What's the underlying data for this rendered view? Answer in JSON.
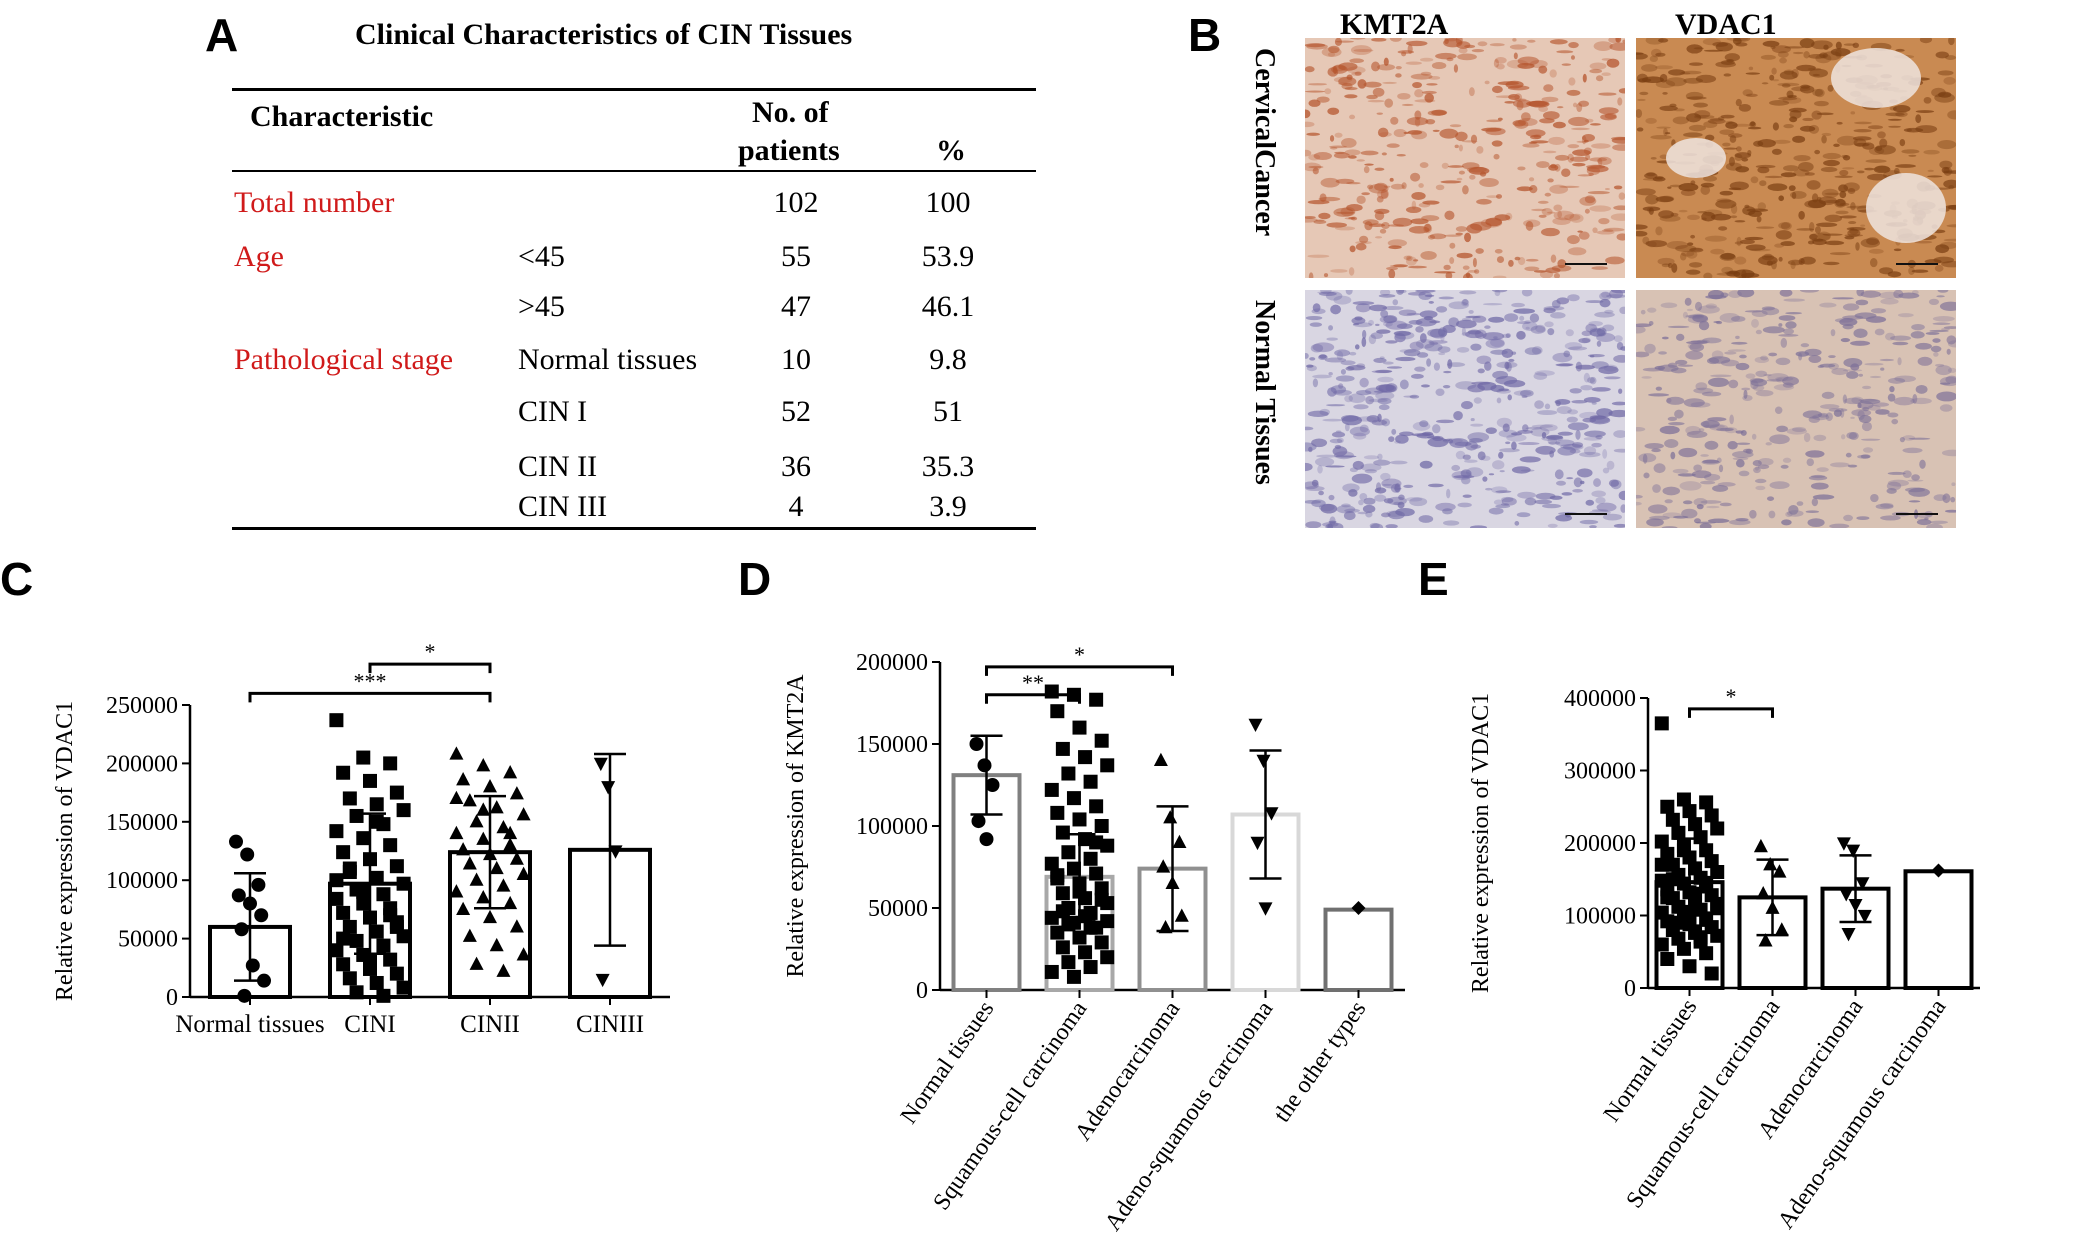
{
  "panel_labels": {
    "a": "A",
    "b": "B",
    "c": "C",
    "d": "D",
    "e": "E"
  },
  "table": {
    "title": "Clinical Characteristics of  CIN Tissues",
    "headers": {
      "characteristic": "Characteristic",
      "no_line1": "No. of",
      "no_line2": "patients",
      "pct": "%"
    },
    "rows": [
      {
        "category": "Total number",
        "sub": "",
        "n": "102",
        "pct": "100"
      },
      {
        "category": "Age",
        "sub": "<45",
        "n": "55",
        "pct": "53.9"
      },
      {
        "category": "",
        "sub": ">45",
        "n": "47",
        "pct": "46.1"
      },
      {
        "category": "Pathological stage",
        "sub": "Normal tissues",
        "n": "10",
        "pct": "9.8"
      },
      {
        "category": "",
        "sub": "CIN I",
        "n": "52",
        "pct": "51"
      },
      {
        "category": "",
        "sub": "CIN II",
        "n": "36",
        "pct": "35.3"
      },
      {
        "category": "",
        "sub": "CIN III",
        "n": "4",
        "pct": "3.9"
      }
    ]
  },
  "micro": {
    "col_titles": [
      "KMT2A",
      "VDAC1"
    ],
    "row_titles": [
      "CervicalCancer",
      "Normal Tissues"
    ],
    "colors": {
      "cancer_kmt2a": "#e6c8b6",
      "cancer_vdac1": "#c98a52",
      "normal_kmt2a": "#d9d6e2",
      "normal_vdac1": "#d8c2b4"
    }
  },
  "chart_data": [
    {
      "type": "bar",
      "panel": "C",
      "ylabel": "Relative expression of VDAC1",
      "ylim": [
        0,
        250000
      ],
      "yticks": [
        "0",
        "50000",
        "100000",
        "150000",
        "200000",
        "250000"
      ],
      "categories": [
        "Normal tissues",
        "CINI",
        "CINII",
        "CINIII"
      ],
      "values": [
        60000,
        97000,
        124000,
        126000
      ],
      "errors": [
        46000,
        60000,
        48000,
        82000
      ],
      "markers": [
        "circle",
        "square",
        "triangle",
        "triangle-down"
      ],
      "bar_colors": [
        "#000000",
        "#000000",
        "#000000",
        "#000000"
      ],
      "points": [
        [
          133000,
          122000,
          96000,
          87000,
          80000,
          70000,
          58000,
          27000,
          14000,
          1000
        ],
        [
          237000,
          205000,
          200000,
          192000,
          185000,
          175000,
          170000,
          165000,
          160000,
          155000,
          148000,
          142000,
          136000,
          130000,
          124000,
          118000,
          112000,
          107000,
          102000,
          97000,
          92000,
          88000,
          84000,
          80000,
          76000,
          72000,
          68000,
          64000,
          60000,
          56000,
          52000,
          48000,
          44000,
          40000,
          36000,
          32000,
          28000,
          24000,
          20000,
          16000,
          12000,
          8000,
          4000,
          1000,
          100000,
          90000,
          70000,
          50000,
          30000,
          60000,
          110000,
          150000
        ],
        [
          208000,
          198000,
          192000,
          186000,
          180000,
          174000,
          168000,
          162000,
          156000,
          150000,
          145000,
          140000,
          135000,
          130000,
          126000,
          122000,
          118000,
          114000,
          110000,
          105000,
          100000,
          95000,
          90000,
          85000,
          80000,
          75000,
          68000,
          60000,
          52000,
          44000,
          36000,
          28000,
          22000,
          170000,
          160000,
          140000
        ],
        [
          200000,
          180000,
          125000,
          15000
        ]
      ],
      "annotations": [
        {
          "from": 0,
          "to": 2,
          "level": 260000,
          "text": "***"
        },
        {
          "from": 1,
          "to": 2,
          "level": 285000,
          "text": "*"
        }
      ]
    },
    {
      "type": "bar",
      "panel": "D",
      "ylabel": "Relative expression of KMT2A",
      "ylim": [
        0,
        200000
      ],
      "yticks": [
        "0",
        "50000",
        "100000",
        "150000",
        "200000"
      ],
      "categories": [
        "Normal tissues",
        "Squamous-cell carcinoma",
        "Adenocarcinoma",
        "Adeno-squamous carcinoma",
        "the other types"
      ],
      "values": [
        131000,
        69000,
        74000,
        107000,
        49000
      ],
      "errors": [
        24000,
        26000,
        38000,
        39000,
        0
      ],
      "markers": [
        "circle",
        "square",
        "triangle",
        "triangle-down",
        "diamond"
      ],
      "bar_colors": [
        "#808080",
        "#a8a8a8",
        "#909090",
        "#d8d8d8",
        "#707070"
      ],
      "points": [
        [
          150000,
          137000,
          125000,
          103000,
          92000
        ],
        [
          182000,
          180000,
          177000,
          170000,
          160000,
          152000,
          147000,
          142000,
          137000,
          132000,
          127000,
          122000,
          117000,
          112000,
          108000,
          104000,
          100000,
          96000,
          92000,
          88000,
          84000,
          80000,
          77000,
          74000,
          71000,
          68000,
          65000,
          62000,
          59000,
          56000,
          53000,
          50000,
          47000,
          44000,
          41000,
          38000,
          35000,
          32000,
          29000,
          26000,
          23000,
          20000,
          17000,
          14000,
          11000,
          8000,
          90000,
          70000,
          60000,
          55000,
          48000,
          45000,
          42000,
          40000,
          38000
        ],
        [
          140000,
          105000,
          90000,
          75000,
          65000,
          45000,
          38000
        ],
        [
          162000,
          140000,
          108000,
          90000,
          50000
        ],
        [
          50000
        ]
      ],
      "annotations": [
        {
          "from": 0,
          "to": 1,
          "level": 180000,
          "text": "**"
        },
        {
          "from": 0,
          "to": 2,
          "level": 197000,
          "text": "*"
        }
      ]
    },
    {
      "type": "bar",
      "panel": "E",
      "ylabel": "Relative expression of VDAC1",
      "ylim": [
        0,
        400000
      ],
      "yticks": [
        "0",
        "100000",
        "200000",
        "300000",
        "400000"
      ],
      "categories": [
        "Normal tissues",
        "Squamous-cell carcinoma",
        "Adenocarcinoma",
        "Adeno-squamous carcinoma"
      ],
      "values": [
        146000,
        125000,
        137000,
        161000
      ],
      "errors": [
        60000,
        52000,
        46000,
        0
      ],
      "markers": [
        "square",
        "triangle",
        "triangle-down",
        "diamond"
      ],
      "bar_colors": [
        "#000000",
        "#000000",
        "#000000",
        "#000000"
      ],
      "points": [
        [
          365000,
          260000,
          256000,
          250000,
          244000,
          238000,
          232000,
          226000,
          220000,
          214000,
          208000,
          202000,
          196000,
          190000,
          185000,
          180000,
          175000,
          170000,
          165000,
          160000,
          156000,
          152000,
          148000,
          144000,
          140000,
          136000,
          132000,
          128000,
          124000,
          120000,
          116000,
          112000,
          108000,
          104000,
          100000,
          96000,
          92000,
          88000,
          84000,
          80000,
          76000,
          72000,
          68000,
          64000,
          60000,
          54000,
          48000,
          40000,
          30000,
          20000,
          150000,
          130000,
          110000,
          90000,
          70000,
          170000,
          190000,
          145000,
          125000,
          105000
        ],
        [
          195000,
          170000,
          160000,
          130000,
          110000,
          80000,
          65000
        ],
        [
          200000,
          190000,
          145000,
          130000,
          115000,
          100000,
          75000
        ],
        [
          162000
        ]
      ],
      "annotations": [
        {
          "from": 0,
          "to": 1,
          "level": 385000,
          "text": "*"
        }
      ]
    }
  ]
}
